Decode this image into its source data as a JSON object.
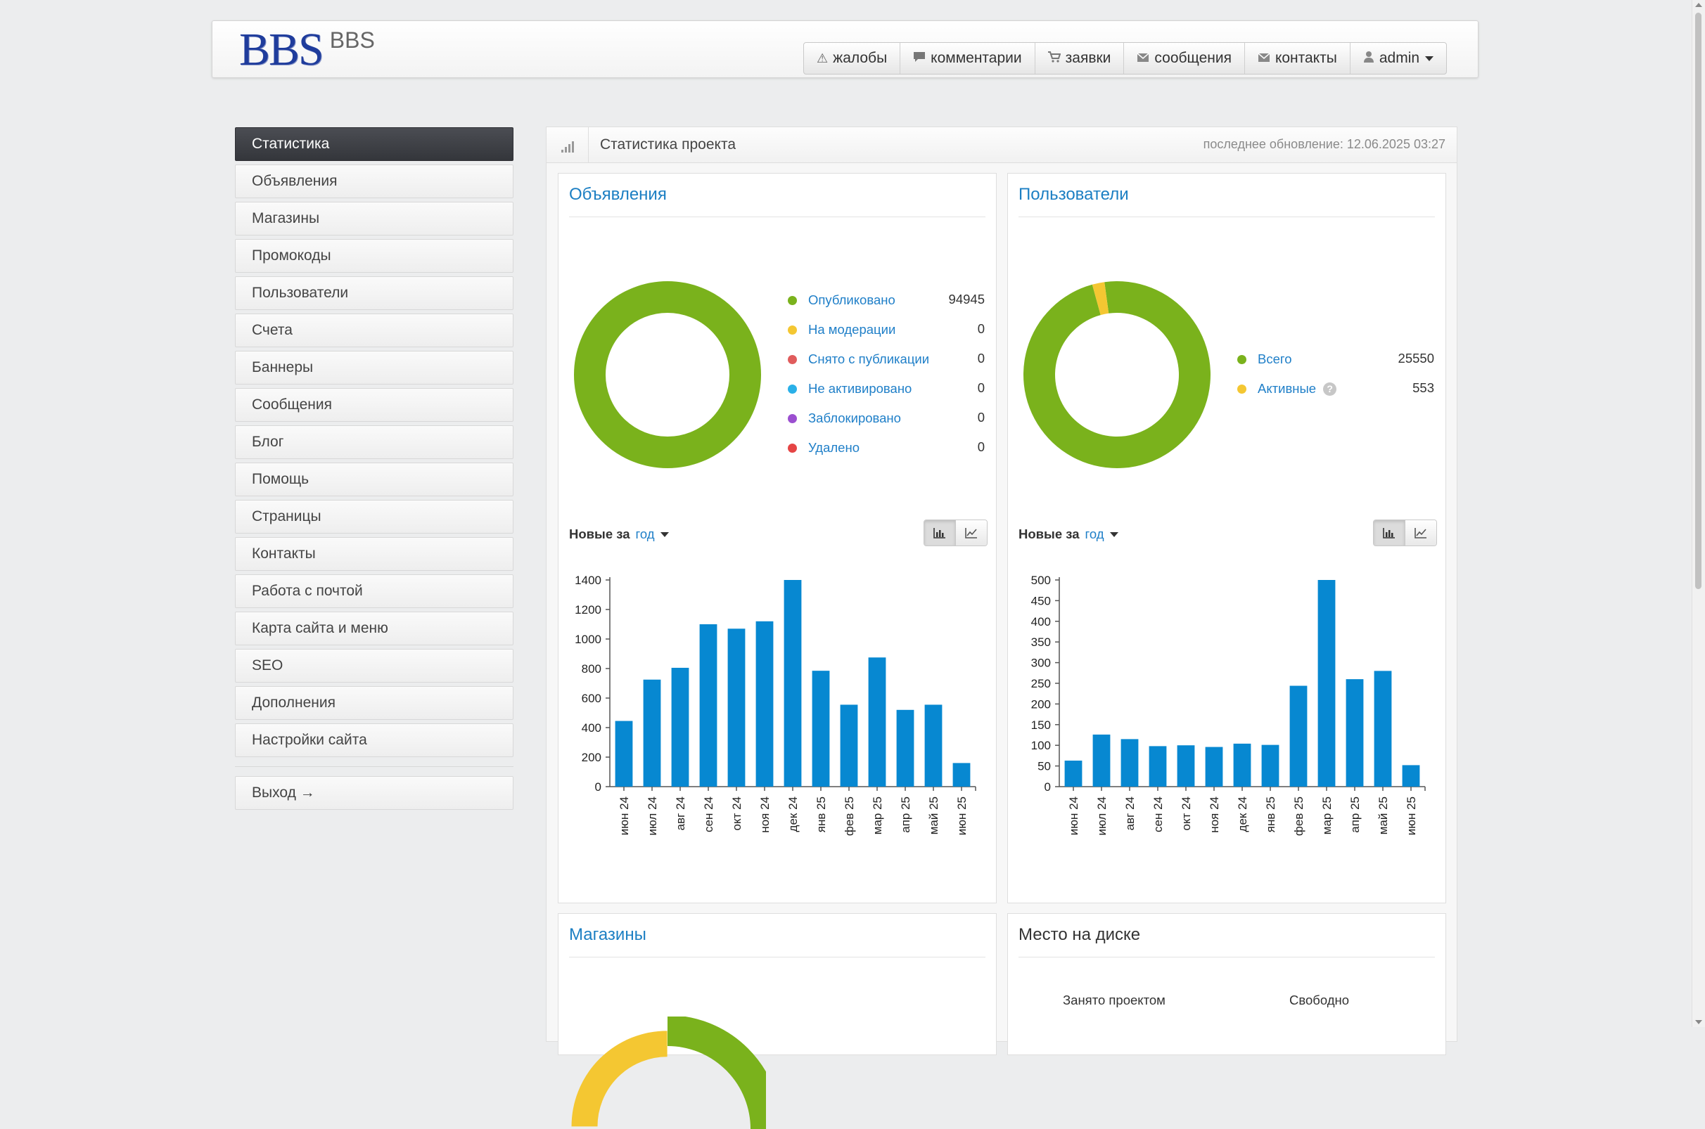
{
  "header": {
    "logo_mark": "BBS",
    "logo_text": "BBS",
    "nav": [
      {
        "label": "жалобы",
        "icon": "warning-icon"
      },
      {
        "label": "комментарии",
        "icon": "comment-icon"
      },
      {
        "label": "заявки",
        "icon": "cart-icon"
      },
      {
        "label": "сообщения",
        "icon": "envelope-icon"
      },
      {
        "label": "контакты",
        "icon": "envelope-icon"
      },
      {
        "label": "admin",
        "icon": "user-icon"
      }
    ]
  },
  "sidebar": {
    "items": [
      {
        "label": "Статистика",
        "active": true
      },
      {
        "label": "Объявления"
      },
      {
        "label": "Магазины"
      },
      {
        "label": "Промокоды"
      },
      {
        "label": "Пользователи"
      },
      {
        "label": "Счета"
      },
      {
        "label": "Баннеры"
      },
      {
        "label": "Сообщения"
      },
      {
        "label": "Блог"
      },
      {
        "label": "Помощь"
      },
      {
        "label": "Страницы"
      },
      {
        "label": "Контакты"
      },
      {
        "label": "Работа с почтой"
      },
      {
        "label": "Карта сайта и меню"
      },
      {
        "label": "SEO"
      },
      {
        "label": "Дополнения"
      },
      {
        "label": "Настройки сайта"
      }
    ],
    "logout": "Выход →"
  },
  "main": {
    "title": "Статистика проекта",
    "updated": "последнее обновление: 12.06.2025 03:27"
  },
  "listings": {
    "title": "Объявления",
    "legend": [
      {
        "label": "Опубликовано",
        "value": "94945",
        "color": "#7ab21c"
      },
      {
        "label": "На модерации",
        "value": "0",
        "color": "#f4c732"
      },
      {
        "label": "Снято с публикации",
        "value": "0",
        "color": "#e05c5c"
      },
      {
        "label": "Не активировано",
        "value": "0",
        "color": "#2ab0e8"
      },
      {
        "label": "Заблокировано",
        "value": "0",
        "color": "#9b4fd0"
      },
      {
        "label": "Удалено",
        "value": "0",
        "color": "#e54545"
      }
    ],
    "new_label": "Новые за",
    "period": "год"
  },
  "users": {
    "title": "Пользователи",
    "legend": [
      {
        "label": "Всего",
        "value": "25550",
        "color": "#7ab21c"
      },
      {
        "label": "Активные",
        "value": "553",
        "color": "#f4c732"
      }
    ],
    "help": "?",
    "new_label": "Новые за",
    "period": "год"
  },
  "shops": {
    "title": "Магазины"
  },
  "disk": {
    "title": "Место на диске",
    "used_label": "Занято проектом",
    "free_label": "Свободно"
  },
  "chart_data": [
    {
      "type": "pie",
      "title": "",
      "labels": [
        "Опубликовано",
        "На модерации",
        "Снято с публикации",
        "Не активировано",
        "Заблокировано",
        "Удалено"
      ],
      "values": [
        94945,
        0,
        0,
        0,
        0,
        0
      ],
      "colors": [
        "#7ab21c",
        "#f4c732",
        "#e05c5c",
        "#2ab0e8",
        "#9b4fd0",
        "#e54545"
      ]
    },
    {
      "type": "pie",
      "title": "",
      "labels": [
        "Всего",
        "Активные"
      ],
      "values": [
        25550,
        553
      ],
      "colors": [
        "#7ab21c",
        "#f4c732"
      ]
    },
    {
      "type": "bar",
      "title": "",
      "categories": [
        "июн 24",
        "июл 24",
        "авг 24",
        "сен 24",
        "окт 24",
        "ноя 24",
        "дек 24",
        "янв 25",
        "фев 25",
        "мар 25",
        "апр 25",
        "май 25",
        "июн 25"
      ],
      "values": [
        445,
        725,
        805,
        1100,
        1070,
        1120,
        1400,
        785,
        555,
        875,
        520,
        555,
        160
      ],
      "yticks": [
        0,
        200,
        400,
        600,
        800,
        1000,
        1200,
        1400
      ],
      "ylim": [
        0,
        1400
      ],
      "color": "#0788d1"
    },
    {
      "type": "bar",
      "title": "",
      "categories": [
        "июн 24",
        "июл 24",
        "авг 24",
        "сен 24",
        "окт 24",
        "ноя 24",
        "дек 24",
        "янв 25",
        "фев 25",
        "мар 25",
        "апр 25",
        "май 25",
        "июн 25"
      ],
      "values": [
        63,
        126,
        115,
        98,
        100,
        96,
        104,
        101,
        244,
        500,
        260,
        280,
        52
      ],
      "yticks": [
        0,
        50,
        100,
        150,
        200,
        250,
        300,
        350,
        400,
        450,
        500
      ],
      "ylim": [
        0,
        500
      ],
      "color": "#0788d1"
    }
  ]
}
